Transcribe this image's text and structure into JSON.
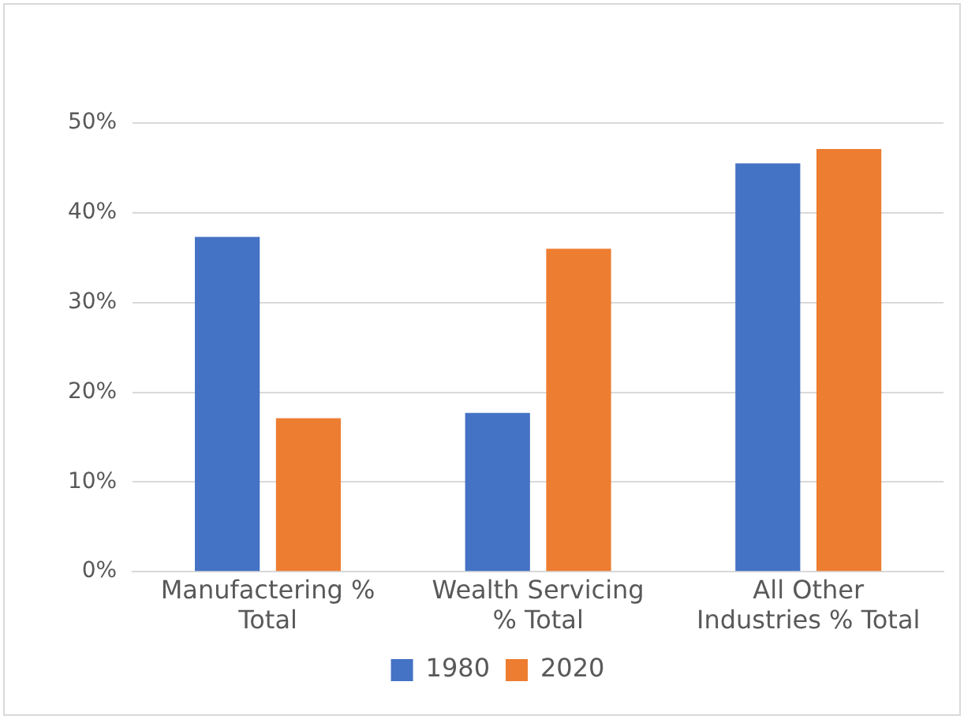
{
  "chart_data": {
    "type": "bar",
    "categories": [
      "Manufactering %\nTotal",
      "Wealth Servicing\n% Total",
      "All Other\nIndustries % Total"
    ],
    "series": [
      {
        "name": "1980",
        "color": "#4472c4",
        "values": [
          37.3,
          17.7,
          45.5
        ]
      },
      {
        "name": "2020",
        "color": "#ed7d31",
        "values": [
          17.1,
          36,
          47.1
        ]
      }
    ],
    "ylim": [
      0,
      50
    ],
    "yticks": [
      {
        "value": 0,
        "label": "0%"
      },
      {
        "value": 10,
        "label": "10%"
      },
      {
        "value": 20,
        "label": "20%"
      },
      {
        "value": 30,
        "label": "30%"
      },
      {
        "value": 40,
        "label": "40%"
      },
      {
        "value": 50,
        "label": "50%"
      }
    ],
    "grid": "y",
    "legend": "bottom"
  }
}
